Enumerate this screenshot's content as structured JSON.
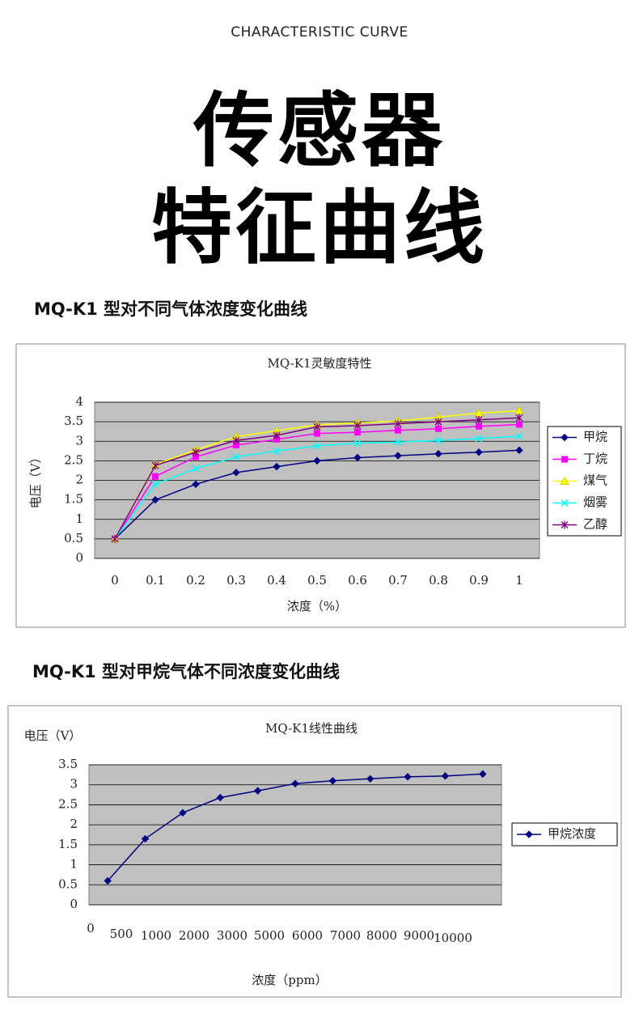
{
  "header": {
    "subtitle": "CHARACTERISTIC CURVE",
    "title_lines": [
      "传感器",
      "特征曲线"
    ]
  },
  "sections": [
    {
      "heading": "MQ-K1 型对不同气体浓度变化曲线"
    },
    {
      "heading": "MQ-K1 型对甲烷气体不同浓度变化曲线"
    }
  ],
  "chart_data": [
    {
      "type": "line",
      "title": "MQ-K1灵敏度特性",
      "x_label": "浓度（%）",
      "y_label": "电压（V）",
      "categories": [
        "0",
        "0.1",
        "0.2",
        "0.3",
        "0.4",
        "0.5",
        "0.6",
        "0.7",
        "0.8",
        "0.9",
        "1"
      ],
      "ylim": [
        0,
        4
      ],
      "yticks": [
        0,
        0.5,
        1,
        1.5,
        2,
        2.5,
        3,
        3.5,
        4
      ],
      "grid": true,
      "legend": "right",
      "series": [
        {
          "name": "甲烷",
          "color": "#000080",
          "marker": "diamond",
          "values": [
            0.5,
            1.5,
            1.9,
            2.2,
            2.35,
            2.5,
            2.58,
            2.63,
            2.68,
            2.72,
            2.77
          ]
        },
        {
          "name": "丁烷",
          "color": "#ff00ff",
          "marker": "square",
          "values": [
            0.5,
            2.1,
            2.6,
            2.9,
            3.05,
            3.2,
            3.23,
            3.28,
            3.32,
            3.38,
            3.43
          ]
        },
        {
          "name": "煤气",
          "color": "#ffff00",
          "marker": "triangle",
          "values": [
            0.5,
            2.4,
            2.78,
            3.12,
            3.27,
            3.42,
            3.47,
            3.52,
            3.62,
            3.72,
            3.78
          ]
        },
        {
          "name": "烟雾",
          "color": "#00ffff",
          "marker": "x",
          "values": [
            0.5,
            1.9,
            2.3,
            2.6,
            2.75,
            2.88,
            2.95,
            2.98,
            3.02,
            3.07,
            3.13
          ]
        },
        {
          "name": "乙醇",
          "color": "#800080",
          "marker": "star",
          "values": [
            0.5,
            2.38,
            2.72,
            3.02,
            3.15,
            3.37,
            3.4,
            3.45,
            3.5,
            3.55,
            3.6
          ]
        }
      ]
    },
    {
      "type": "line",
      "title": "MQ-K1线性曲线",
      "x_label": "浓度（ppm）",
      "y_label": "电压（V）",
      "categories": [
        "0",
        "500",
        "1000",
        "2000",
        "3000",
        "5000",
        "6000",
        "7000",
        "8000",
        "9000",
        "10000"
      ],
      "ylim": [
        0,
        3.5
      ],
      "yticks": [
        0,
        0.5,
        1,
        1.5,
        2,
        2.5,
        3,
        3.5
      ],
      "grid": true,
      "legend": "right",
      "series": [
        {
          "name": "甲烷浓度",
          "color": "#000080",
          "marker": "diamond",
          "values": [
            0.6,
            1.65,
            2.3,
            2.68,
            2.85,
            3.03,
            3.1,
            3.15,
            3.2,
            3.22,
            3.27
          ]
        }
      ]
    }
  ]
}
